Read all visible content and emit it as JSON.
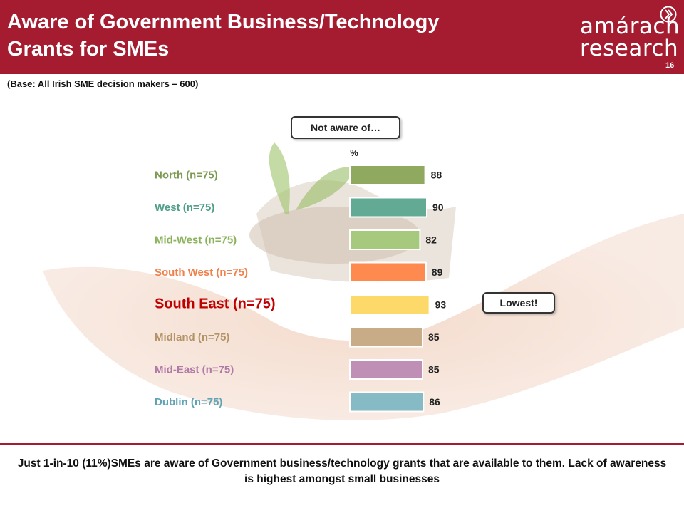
{
  "header": {
    "title_line1": "Aware of Government Business/Technology",
    "title_line2": "Grants for SMEs",
    "logo_line1": "amárach",
    "logo_line2": "research",
    "page_number": "16",
    "background_color": "#a51c30"
  },
  "base_note": "(Base: All Irish SME decision makers – 600)",
  "callouts": {
    "not_aware": "Not aware of…",
    "lowest": "Lowest!"
  },
  "chart_data": {
    "type": "bar",
    "orientation": "horizontal",
    "unit_label": "%",
    "categories": [
      "North (n=75)",
      "West (n=75)",
      "Mid-West (n=75)",
      "South West (n=75)",
      "South East (n=75)",
      "Midland (n=75)",
      "Mid-East (n=75)",
      "Dublin (n=75)"
    ],
    "values": [
      88,
      90,
      82,
      89,
      93,
      85,
      85,
      86
    ],
    "bar_colors": [
      "#8faa5e",
      "#62aa93",
      "#a6c97e",
      "#ff8a50",
      "#fdd96a",
      "#c8ac88",
      "#c08fb5",
      "#86bac4"
    ],
    "label_colors": [
      "#7d9a52",
      "#4f9f88",
      "#89b35a",
      "#f0804a",
      "#c00000",
      "#b39366",
      "#b07aa6",
      "#5fa3b5"
    ],
    "highlight_index": 4
  },
  "footnote": "Just 1-in-10 (11%)SMEs are aware of Government business/technology grants that are available to them.  Lack of awareness is highest amongst small businesses"
}
